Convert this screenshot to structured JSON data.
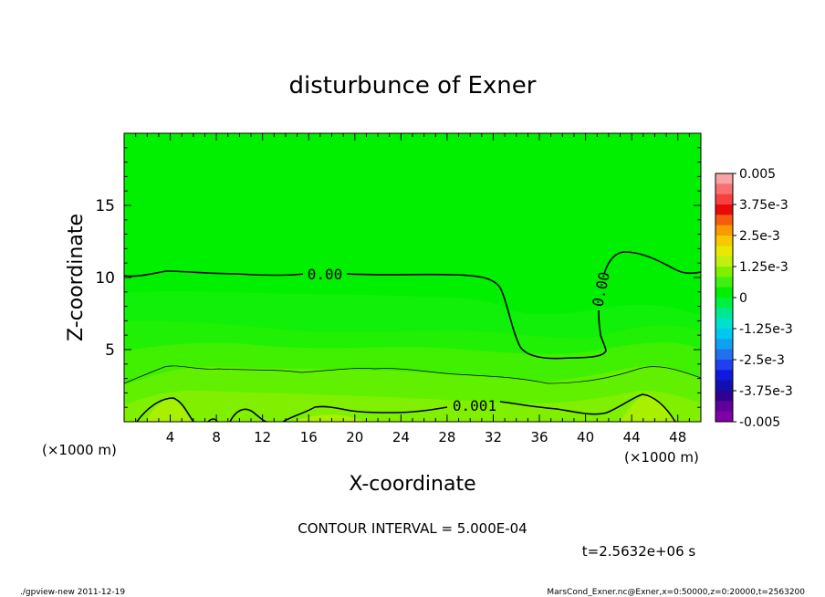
{
  "chart_data": {
    "type": "heatmap",
    "title": "disturbunce of Exner",
    "xlabel": "X-coordinate",
    "ylabel": "Z-coordinate",
    "x_unit_left": "(×1000 m)",
    "x_unit_right": "(×1000 m)",
    "xlim": [
      0,
      50
    ],
    "ylim": [
      0,
      20
    ],
    "xticks": [
      4,
      8,
      12,
      16,
      20,
      24,
      28,
      32,
      36,
      40,
      44,
      48
    ],
    "yticks": [
      5,
      10,
      15
    ],
    "contour_labels": [
      {
        "text": "0.00",
        "x": 17.5,
        "z": 10.2
      },
      {
        "text": "0.00",
        "x": 41.3,
        "z": 9.2
      },
      {
        "text": "0.001",
        "x": 30.0,
        "z": 1.1
      }
    ],
    "colorbar": {
      "labels": [
        "0.005",
        "3.75e-3",
        "2.5e-3",
        "1.25e-3",
        "0",
        "-1.25e-3",
        "-2.5e-3",
        "-3.75e-3",
        "-0.005"
      ],
      "colors": [
        "#f8a4a4",
        "#f87070",
        "#f84040",
        "#e80a0a",
        "#f85a10",
        "#f89a00",
        "#f8c800",
        "#e8e800",
        "#c0f010",
        "#80f000",
        "#40f010",
        "#00f000",
        "#00f040",
        "#00e890",
        "#00e0d0",
        "#00c8f0",
        "#10a0f0",
        "#2070f0",
        "#2040f0",
        "#1018e0",
        "#1010b0",
        "#300090",
        "#600098",
        "#8000a8"
      ]
    },
    "field_bands": {
      "background": "#00f000",
      "bands": [
        {
          "level": "0.00025",
          "color": "#10f008"
        },
        {
          "level": "0.0005",
          "color": "#20f004"
        },
        {
          "level": "0.00075",
          "color": "#40f000"
        },
        {
          "level": "0.001",
          "color": "#60f000"
        },
        {
          "level": "0.00125",
          "color": "#80f000"
        }
      ]
    }
  },
  "annotations": {
    "contour_interval": "CONTOUR INTERVAL = 5.000E-04",
    "time": "t=2.5632e+06 s",
    "footer_left": "./gpview-new   2011-12-19",
    "footer_right": "MarsCond_Exner.nc@Exner,x=0:50000,z=0:20000,t=2563200"
  }
}
